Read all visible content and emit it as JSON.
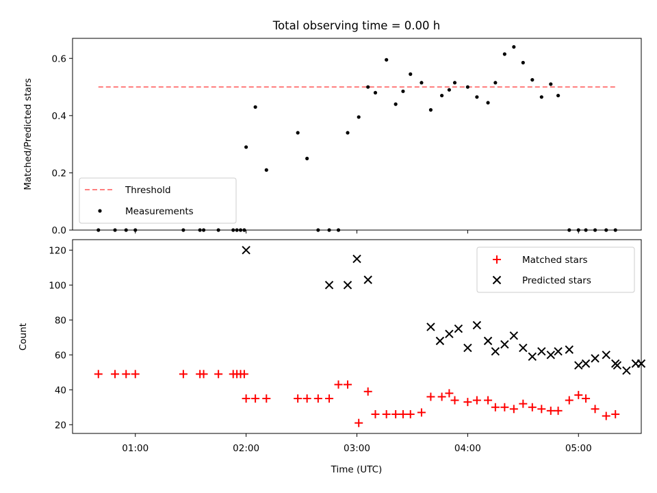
{
  "title": "Total observing time = 0.00 h",
  "colors": {
    "threshold": "#ff7f7f",
    "measurement": "#000000",
    "matched": "#ff0000",
    "predicted": "#000000"
  },
  "chart_data": [
    {
      "type": "scatter",
      "panel": "top",
      "ylabel": "Matched/Predicted stars",
      "xlabel": "",
      "ylim": [
        0,
        0.67
      ],
      "yticks": [
        "0.0",
        "0.2",
        "0.4",
        "0.6"
      ],
      "ytick_values": [
        0,
        0.2,
        0.4,
        0.6
      ],
      "legend": {
        "position": "lower-left",
        "entries": [
          "Threshold",
          "Measurements"
        ]
      },
      "threshold": {
        "name": "Threshold",
        "y": 0.5,
        "x": [
          "00:40",
          "05:20"
        ],
        "style": "dashed"
      },
      "series": [
        {
          "name": "Measurements",
          "x": [
            "00:40",
            "00:49",
            "00:55",
            "01:00",
            "01:26",
            "01:35",
            "01:37",
            "01:45",
            "01:53",
            "01:55",
            "01:57",
            "01:59",
            "02:00",
            "02:05",
            "02:11",
            "02:28",
            "02:33",
            "02:39",
            "02:45",
            "02:50",
            "02:55",
            "03:01",
            "03:06",
            "03:10",
            "03:16",
            "03:21",
            "03:25",
            "03:29",
            "03:35",
            "03:40",
            "03:46",
            "03:50",
            "03:53",
            "04:00",
            "04:05",
            "04:11",
            "04:15",
            "04:20",
            "04:25",
            "04:30",
            "04:35",
            "04:40",
            "04:45",
            "04:49",
            "04:55",
            "05:00",
            "05:04",
            "05:09",
            "05:15",
            "05:20"
          ],
          "y": [
            0,
            0,
            0,
            0,
            0,
            0,
            0,
            0,
            0,
            0,
            0,
            0,
            0.29,
            0.43,
            0.21,
            0.34,
            0.25,
            0,
            0,
            0,
            0.34,
            0.395,
            0.5,
            0.48,
            0.595,
            0.44,
            0.485,
            0.545,
            0.515,
            0.42,
            0.47,
            0.49,
            0.515,
            0.5,
            0.465,
            0.445,
            0.515,
            0.615,
            0.64,
            0.585,
            0.525,
            0.465,
            0.51,
            0.47,
            0,
            0,
            0,
            0,
            0,
            0
          ]
        }
      ]
    },
    {
      "type": "scatter",
      "panel": "bottom",
      "xlabel": "Time (UTC)",
      "ylabel": "Count",
      "ylim": [
        15,
        126
      ],
      "yticks": [
        "20",
        "40",
        "60",
        "80",
        "100",
        "120"
      ],
      "ytick_values": [
        20,
        40,
        60,
        80,
        100,
        120
      ],
      "xlim": [
        "00:26",
        "05:34"
      ],
      "xticks": [
        "01:00",
        "02:00",
        "03:00",
        "04:00",
        "05:00"
      ],
      "legend": {
        "position": "upper-right",
        "entries": [
          "Matched stars",
          "Predicted stars"
        ]
      },
      "series": [
        {
          "name": "Matched stars",
          "marker": "+",
          "x": [
            "00:40",
            "00:49",
            "00:55",
            "01:00",
            "01:26",
            "01:35",
            "01:37",
            "01:45",
            "01:53",
            "01:55",
            "01:57",
            "01:59",
            "02:00",
            "02:05",
            "02:11",
            "02:28",
            "02:33",
            "02:39",
            "02:45",
            "02:50",
            "02:55",
            "03:01",
            "03:06",
            "03:10",
            "03:16",
            "03:21",
            "03:25",
            "03:29",
            "03:35",
            "03:40",
            "03:46",
            "03:50",
            "03:53",
            "04:00",
            "04:05",
            "04:11",
            "04:15",
            "04:20",
            "04:25",
            "04:30",
            "04:35",
            "04:40",
            "04:45",
            "04:49",
            "04:55",
            "05:00",
            "05:04",
            "05:09",
            "05:15",
            "05:20"
          ],
          "y": [
            49,
            49,
            49,
            49,
            49,
            49,
            49,
            49,
            49,
            49,
            49,
            49,
            35,
            35,
            35,
            35,
            35,
            35,
            35,
            43,
            43,
            21,
            39,
            26,
            26,
            26,
            26,
            26,
            27,
            36,
            36,
            38,
            34,
            33,
            34,
            34,
            30,
            30,
            29,
            32,
            30,
            29,
            28,
            28,
            34,
            37,
            35,
            29,
            25,
            26
          ]
        },
        {
          "name": "Predicted stars",
          "marker": "x",
          "x": [
            "02:00",
            "02:45",
            "02:55",
            "03:00",
            "03:06",
            "03:40",
            "03:45",
            "03:50",
            "03:55",
            "04:00",
            "04:05",
            "04:11",
            "04:15",
            "04:20",
            "04:25",
            "04:30",
            "04:35",
            "04:40",
            "04:45",
            "04:49",
            "04:55",
            "05:00",
            "05:04",
            "05:09",
            "05:15",
            "05:20",
            "05:21",
            "05:26",
            "05:31",
            "05:34"
          ],
          "y": [
            120,
            100,
            100,
            115,
            103,
            76,
            68,
            72,
            75,
            64,
            77,
            68,
            62,
            66,
            71,
            64,
            59,
            62,
            60,
            62,
            63,
            54,
            55,
            58,
            60,
            55,
            54,
            51,
            55,
            55
          ]
        }
      ]
    }
  ]
}
